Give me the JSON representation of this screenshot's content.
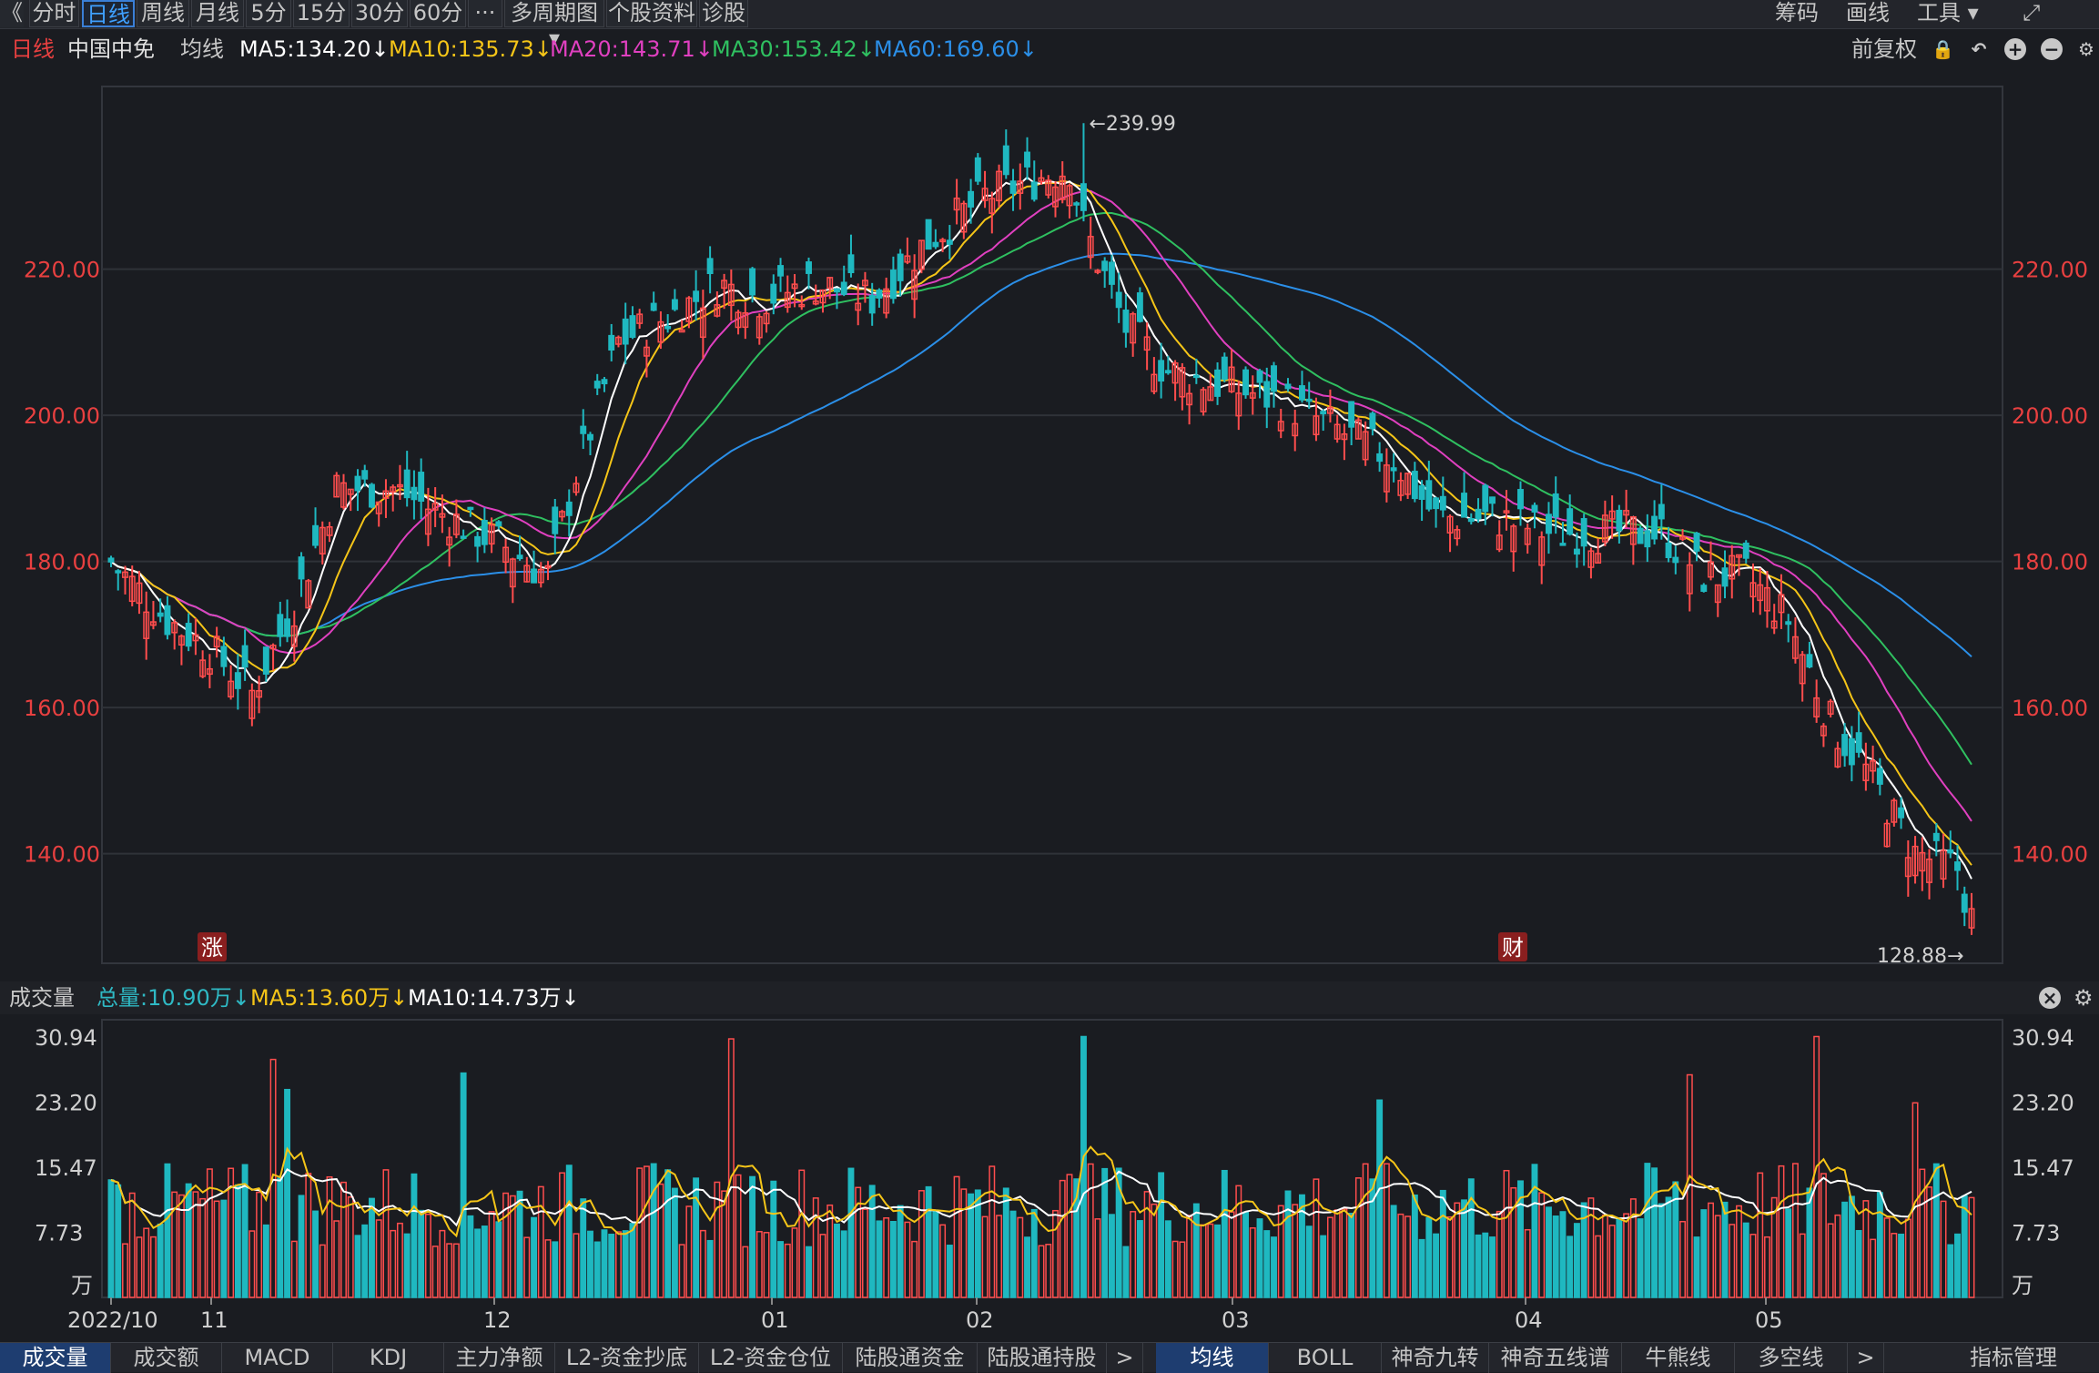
{
  "toolbar": {
    "back": "《",
    "tabs": [
      "分时",
      "日线",
      "周线",
      "月线",
      "5分",
      "15分",
      "30分",
      "60分",
      "···",
      "多周期图 ▾",
      "个股资料",
      "诊股"
    ],
    "active_tab": "日线",
    "right_items": [
      "筹码",
      "画线",
      "工具 ▾",
      "⤢"
    ]
  },
  "ma_bar": {
    "period": "日线",
    "stock_name": "中国中免",
    "label": "均线",
    "ma5": "MA5:134.20↓",
    "ma10": "MA10:135.73↓",
    "ma20": "MA20:143.71↓",
    "ma30": "MA30:153.42↓",
    "ma60": "MA60:169.60↓",
    "adjust": "前复权"
  },
  "colors": {
    "up": "#ff4d4d",
    "down": "#1fb8c0",
    "ma5": "#ffffff",
    "ma10": "#f5c518",
    "ma20": "#e040c0",
    "ma30": "#2fc060",
    "ma60": "#2b8fe8",
    "grid": "#2f3238",
    "axis_label": "#e84040"
  },
  "price_axis": {
    "ticks": [
      "220.00",
      "200.00",
      "180.00",
      "160.00",
      "140.00"
    ],
    "high_label": "239.99",
    "low_label": "128.88→"
  },
  "markers": {
    "zhang": "涨",
    "cai": "财"
  },
  "volume_bar": {
    "label": "成交量",
    "total": "总量:10.90万↓",
    "ma5": "MA5:13.60万↓",
    "ma10": "MA10:14.73万↓"
  },
  "volume_axis": {
    "ticks": [
      "30.94",
      "23.20",
      "15.47",
      "7.73",
      "万"
    ]
  },
  "date_axis": [
    "2022/10",
    "11",
    "12",
    "01",
    "02",
    "03",
    "04",
    "05"
  ],
  "bottom_tabs": [
    "成交量",
    "成交额",
    "MACD",
    "KDJ",
    "主力净额",
    "L2-资金抄底",
    "L2-资金仓位",
    "陆股通资金",
    "陆股通持股",
    ">",
    "均线",
    "BOLL",
    "神奇九转",
    "神奇五线谱",
    "牛熊线",
    "多空线",
    ">",
    "指标管理"
  ],
  "chart_data": {
    "type": "candlestick",
    "y_range": [
      125,
      245
    ],
    "volume_range": [
      0,
      33
    ],
    "high": 239.99,
    "low": 128.88,
    "ma_last": {
      "MA5": 134.2,
      "MA10": 135.73,
      "MA20": 143.71,
      "MA30": 153.42,
      "MA60": 169.6
    }
  }
}
